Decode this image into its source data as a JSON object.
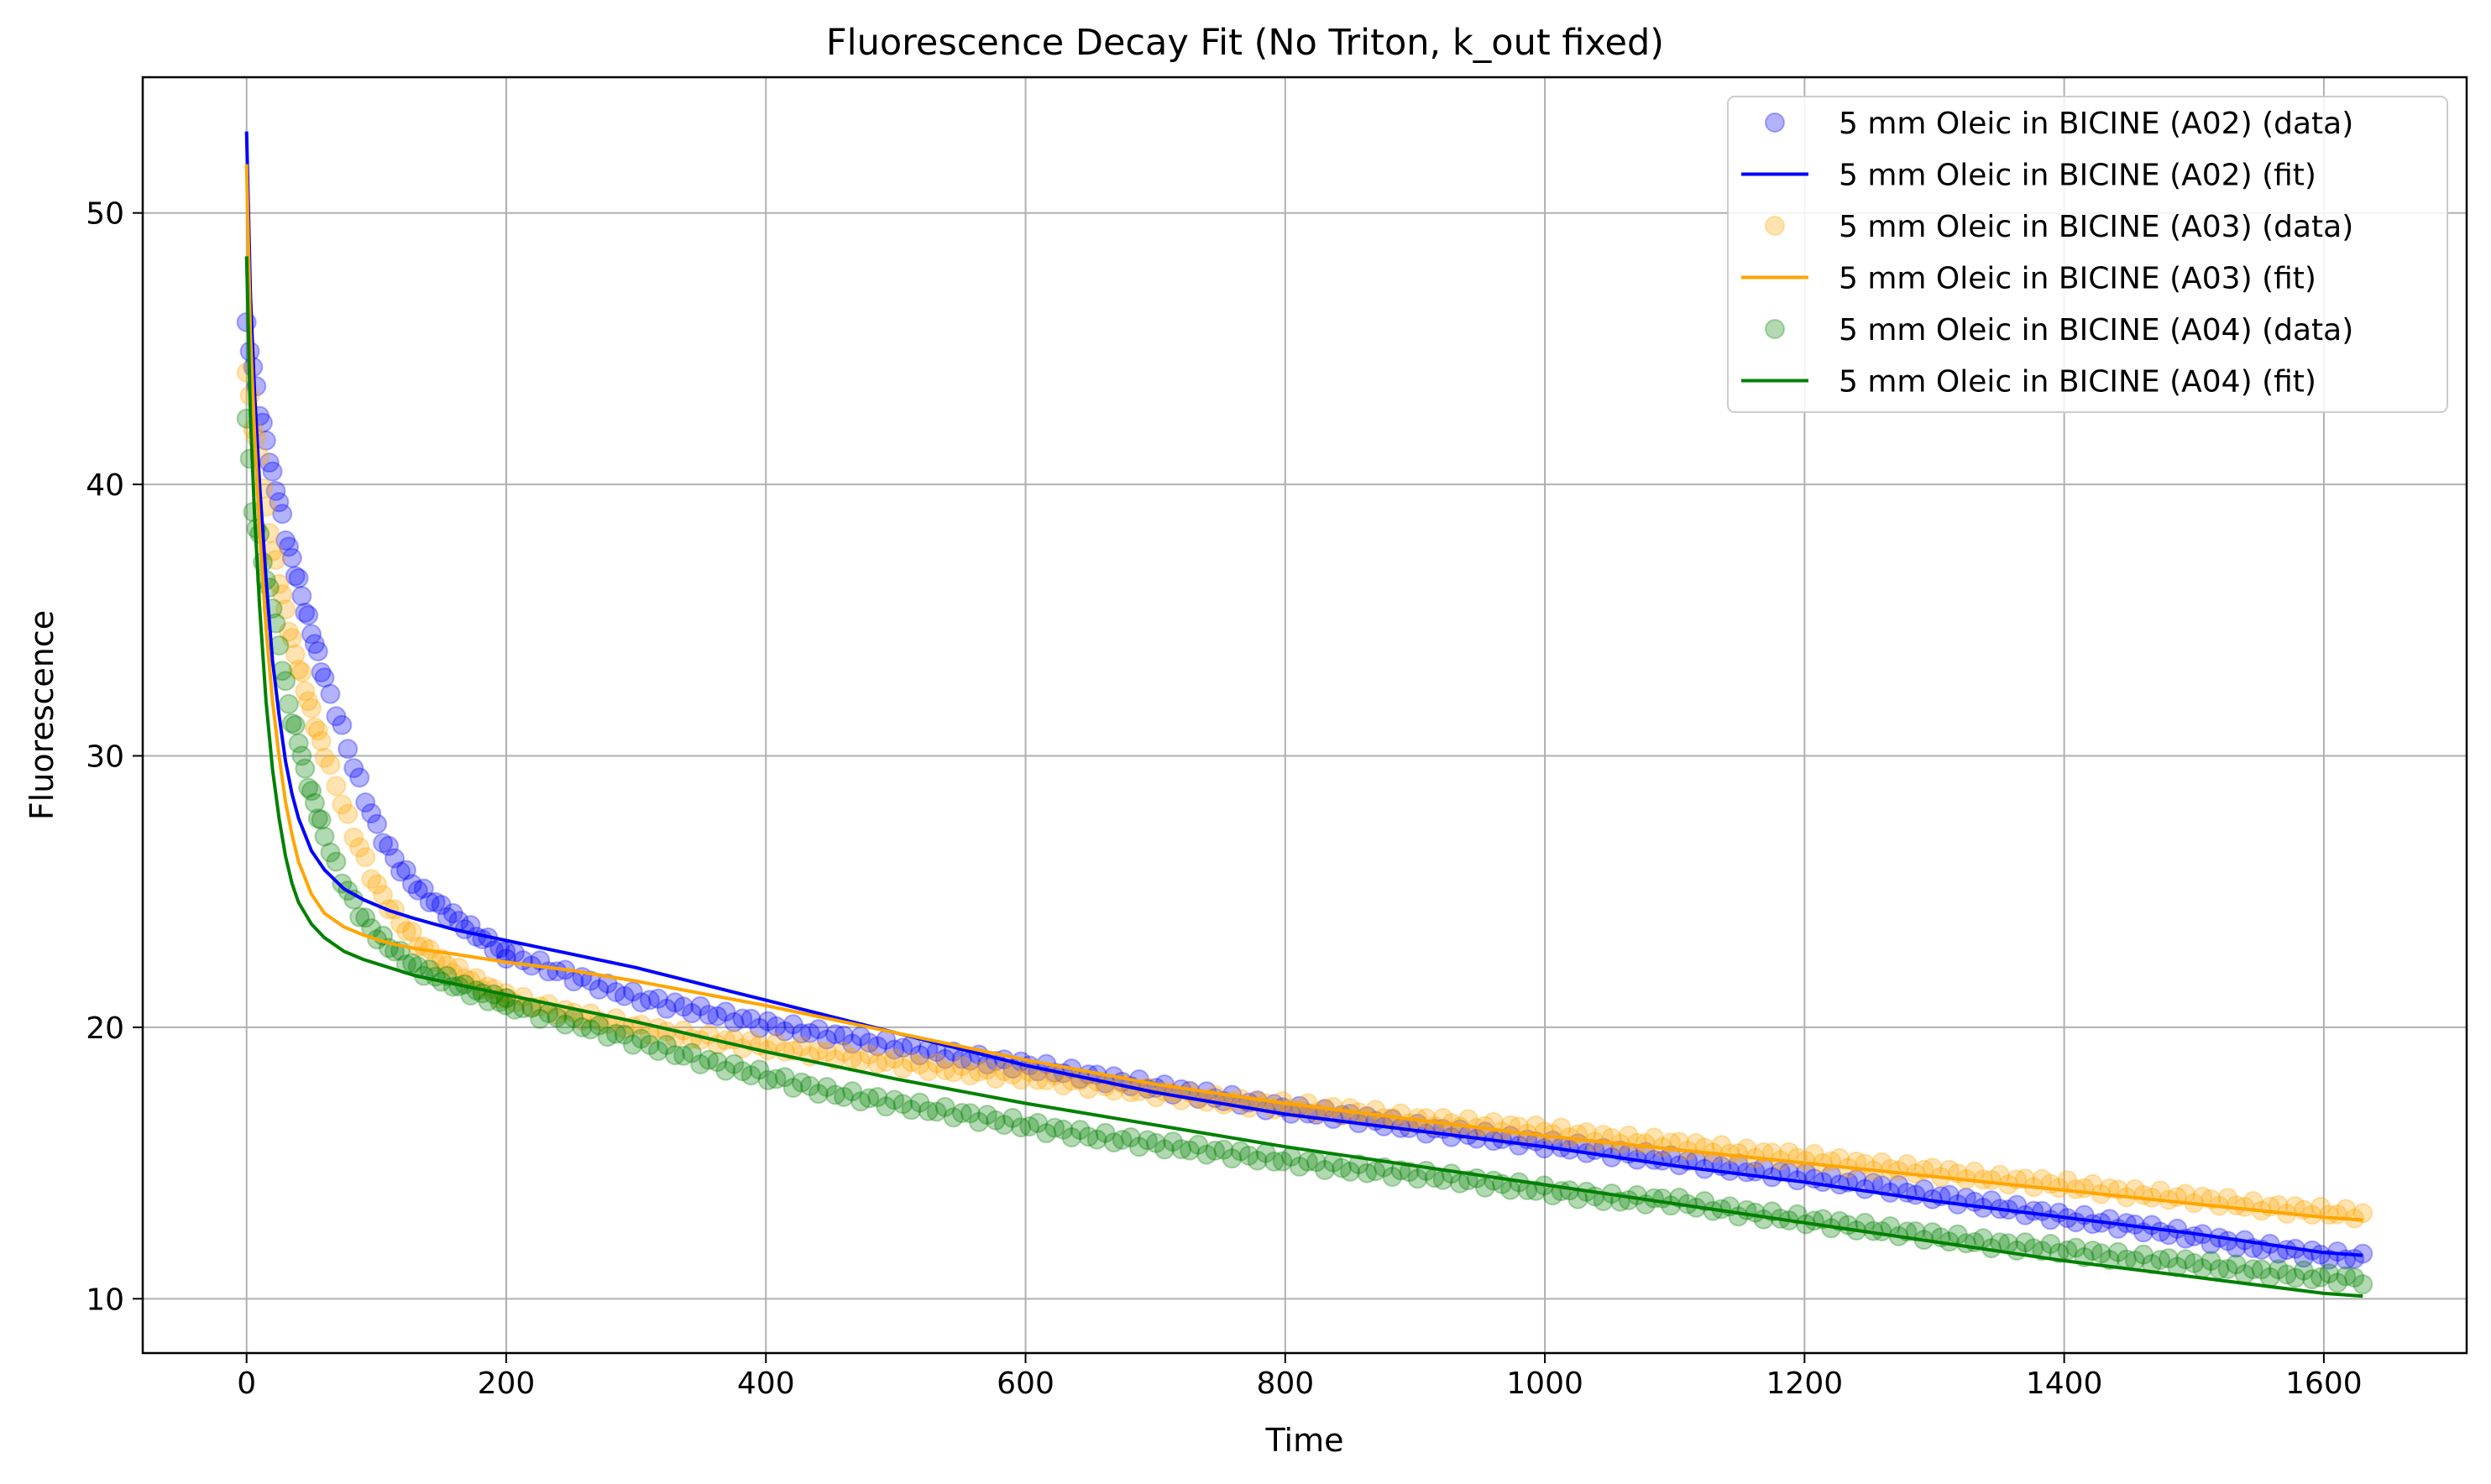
{
  "chart_data": {
    "type": "scatter",
    "title": "Fluorescence Decay Fit (No Triton, k_out fixed)",
    "xlabel": "Time",
    "ylabel": "Fluorescence",
    "xlim": [
      -80,
      1710
    ],
    "ylim": [
      8,
      55
    ],
    "xticks": [
      0,
      200,
      400,
      600,
      800,
      1000,
      1200,
      1400,
      1600
    ],
    "yticks": [
      10,
      20,
      30,
      40,
      50
    ],
    "grid": true,
    "legend_position": "top-right",
    "legend": [
      "5 mm Oleic in BICINE (A02) (data)",
      "5 mm Oleic in BICINE (A02) (fit)",
      "5 mm Oleic in BICINE (A03) (data)",
      "5 mm Oleic in BICINE (A03) (fit)",
      "5 mm Oleic in BICINE (A04) (data)",
      "5 mm Oleic in BICINE (A04) (fit)"
    ],
    "series": [
      {
        "name": "5 mm Oleic in BICINE (A02) (data)",
        "kind": "scatter",
        "color": "#0000ff",
        "x": [
          0,
          5,
          10,
          15,
          20,
          25,
          30,
          35,
          40,
          45,
          50,
          60,
          70,
          80,
          90,
          100,
          115,
          130,
          150,
          175,
          200,
          225,
          250,
          300,
          350,
          400,
          450,
          500,
          550,
          600,
          650,
          700,
          750,
          800,
          850,
          900,
          950,
          1000,
          1050,
          1100,
          1150,
          1200,
          1250,
          1300,
          1350,
          1400,
          1450,
          1500,
          1550,
          1600,
          1630
        ],
        "y": [
          45.8,
          44.3,
          42.7,
          41.6,
          40.3,
          39.4,
          38.1,
          37.2,
          36.4,
          35.4,
          34.6,
          32.8,
          31.5,
          30.0,
          28.6,
          27.4,
          26.1,
          25.2,
          24.4,
          23.5,
          22.7,
          22.3,
          21.9,
          21.1,
          20.6,
          20.1,
          19.7,
          19.3,
          18.9,
          18.6,
          18.2,
          17.8,
          17.4,
          17.0,
          16.7,
          16.3,
          16.0,
          15.7,
          15.4,
          15.1,
          14.8,
          14.5,
          14.2,
          13.8,
          13.4,
          13.0,
          12.7,
          12.3,
          11.9,
          11.6,
          11.5
        ]
      },
      {
        "name": "5 mm Oleic in BICINE (A02) (fit)",
        "kind": "line",
        "color": "#0000ff",
        "x": [
          0,
          3,
          6,
          10,
          15,
          20,
          25,
          30,
          35,
          40,
          50,
          60,
          75,
          90,
          110,
          130,
          160,
          200,
          250,
          300,
          400,
          500,
          600,
          700,
          800,
          900,
          1000,
          1100,
          1200,
          1300,
          1400,
          1500,
          1600,
          1630
        ],
        "y": [
          53.0,
          47.0,
          43.5,
          40.0,
          36.5,
          33.5,
          31.5,
          29.8,
          28.6,
          27.7,
          26.5,
          25.8,
          25.1,
          24.7,
          24.3,
          24.0,
          23.6,
          23.2,
          22.7,
          22.2,
          21.0,
          19.8,
          18.6,
          17.6,
          16.8,
          16.2,
          15.6,
          14.9,
          14.3,
          13.6,
          13.0,
          12.4,
          11.7,
          11.6
        ]
      },
      {
        "name": "5 mm Oleic in BICINE (A03) (data)",
        "kind": "scatter",
        "color": "#ffa500",
        "x": [
          0,
          5,
          10,
          15,
          20,
          25,
          30,
          35,
          40,
          45,
          50,
          60,
          70,
          80,
          90,
          100,
          115,
          130,
          150,
          175,
          200,
          225,
          250,
          300,
          350,
          400,
          450,
          500,
          550,
          600,
          650,
          700,
          750,
          800,
          850,
          900,
          950,
          1000,
          1050,
          1100,
          1150,
          1200,
          1250,
          1300,
          1350,
          1400,
          1450,
          1500,
          1550,
          1600,
          1630
        ],
        "y": [
          44.1,
          42.2,
          41.0,
          39.0,
          37.6,
          36.5,
          35.3,
          34.2,
          33.3,
          32.5,
          31.6,
          30.1,
          28.8,
          27.4,
          26.3,
          25.2,
          24.1,
          23.2,
          22.4,
          21.7,
          21.1,
          20.8,
          20.5,
          20.0,
          19.6,
          19.3,
          19.0,
          18.7,
          18.4,
          18.2,
          17.9,
          17.6,
          17.3,
          17.1,
          16.9,
          16.6,
          16.4,
          16.2,
          15.9,
          15.7,
          15.4,
          15.2,
          14.9,
          14.7,
          14.4,
          14.2,
          13.9,
          13.7,
          13.4,
          13.2,
          13.1
        ]
      },
      {
        "name": "5 mm Oleic in BICINE (A03) (fit)",
        "kind": "line",
        "color": "#ffa500",
        "x": [
          0,
          3,
          6,
          10,
          15,
          20,
          25,
          30,
          35,
          40,
          50,
          60,
          75,
          90,
          110,
          130,
          160,
          200,
          250,
          300,
          400,
          500,
          600,
          700,
          800,
          900,
          1000,
          1100,
          1200,
          1300,
          1400,
          1500,
          1600,
          1630
        ],
        "y": [
          51.8,
          45.5,
          42.0,
          38.3,
          34.7,
          32.0,
          30.0,
          28.3,
          27.1,
          26.1,
          24.9,
          24.2,
          23.7,
          23.4,
          23.1,
          22.9,
          22.7,
          22.4,
          22.1,
          21.7,
          20.8,
          19.8,
          18.8,
          17.9,
          17.2,
          16.6,
          16.0,
          15.5,
          15.0,
          14.5,
          14.0,
          13.5,
          13.0,
          12.9
        ]
      },
      {
        "name": "5 mm Oleic in BICINE (A04) (data)",
        "kind": "scatter",
        "color": "#008000",
        "x": [
          0,
          5,
          10,
          15,
          20,
          25,
          30,
          35,
          40,
          45,
          50,
          60,
          70,
          80,
          90,
          100,
          115,
          130,
          150,
          175,
          200,
          225,
          250,
          300,
          350,
          400,
          450,
          500,
          550,
          600,
          650,
          700,
          750,
          800,
          850,
          900,
          950,
          1000,
          1050,
          1100,
          1150,
          1200,
          1250,
          1300,
          1350,
          1400,
          1450,
          1500,
          1550,
          1600,
          1630
        ],
        "y": [
          42.6,
          39.0,
          38.0,
          36.5,
          35.6,
          34.0,
          32.6,
          31.3,
          30.6,
          29.4,
          28.6,
          27.1,
          25.8,
          24.8,
          24.0,
          23.4,
          22.8,
          22.2,
          21.8,
          21.3,
          20.9,
          20.5,
          20.2,
          19.5,
          18.8,
          18.2,
          17.6,
          17.2,
          16.8,
          16.4,
          16.0,
          15.7,
          15.4,
          15.1,
          14.8,
          14.6,
          14.3,
          14.0,
          13.7,
          13.6,
          13.2,
          12.9,
          12.6,
          12.3,
          12.0,
          11.8,
          11.5,
          11.3,
          11.0,
          10.8,
          10.7
        ]
      },
      {
        "name": "5 mm Oleic in BICINE (A04) (fit)",
        "kind": "line",
        "color": "#008000",
        "x": [
          0,
          3,
          6,
          10,
          15,
          20,
          25,
          30,
          35,
          40,
          50,
          60,
          75,
          90,
          110,
          130,
          160,
          200,
          250,
          300,
          400,
          500,
          600,
          700,
          800,
          900,
          1000,
          1100,
          1200,
          1300,
          1400,
          1500,
          1600,
          1630
        ],
        "y": [
          48.4,
          42.5,
          39.0,
          35.5,
          32.0,
          29.5,
          27.7,
          26.3,
          25.3,
          24.6,
          23.8,
          23.3,
          22.8,
          22.5,
          22.2,
          21.9,
          21.6,
          21.2,
          20.7,
          20.2,
          19.1,
          18.1,
          17.2,
          16.4,
          15.6,
          14.9,
          14.2,
          13.5,
          12.8,
          12.1,
          11.4,
          10.8,
          10.2,
          10.1
        ]
      }
    ]
  }
}
